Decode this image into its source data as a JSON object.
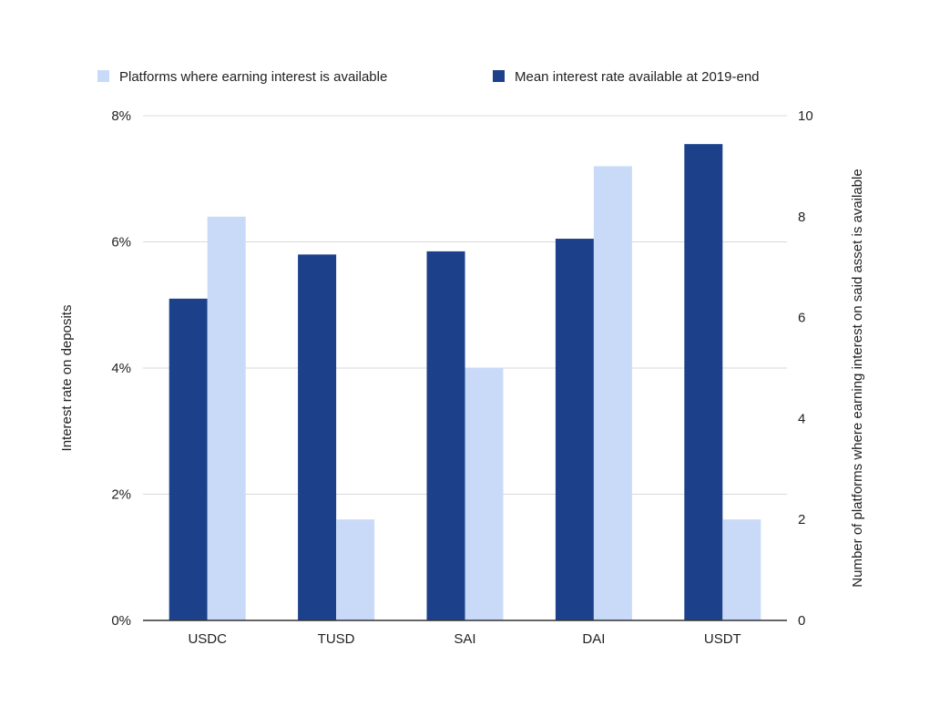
{
  "chart_data": {
    "type": "bar",
    "categories": [
      "USDC",
      "TUSD",
      "SAI",
      "DAI",
      "USDT"
    ],
    "series": [
      {
        "name": "Mean interest rate available at 2019-end",
        "axis": "left",
        "values": [
          5.1,
          5.8,
          5.85,
          6.05,
          7.55
        ],
        "color": "#1c418a"
      },
      {
        "name": "Platforms where earning interest is available",
        "axis": "right",
        "values": [
          8,
          2,
          5,
          9,
          2
        ],
        "color": "#c9daf8"
      }
    ],
    "ylabel": "Interest rate on deposits",
    "y2label": "Number of platforms where earning interest on said asset is available",
    "ylim": [
      0,
      8
    ],
    "y2lim": [
      0,
      10
    ],
    "yticks": [
      0,
      2,
      4,
      6,
      8
    ],
    "yticklabels": [
      "0%",
      "2%",
      "4%",
      "6%",
      "8%"
    ],
    "y2ticks": [
      0,
      2,
      4,
      6,
      8,
      10
    ],
    "y2ticklabels": [
      "0",
      "2",
      "4",
      "6",
      "8",
      "10"
    ],
    "grid": true,
    "legend": {
      "position": "top",
      "order": [
        1,
        0
      ]
    },
    "colors": {
      "grid": "#d9d9d9",
      "axis": "#333333",
      "text": "#222222"
    }
  }
}
